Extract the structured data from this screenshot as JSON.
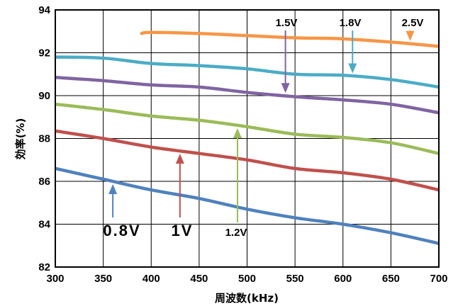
{
  "chart_data": {
    "type": "line",
    "title": "",
    "xlabel": "周波数(kHz)",
    "ylabel": "効率(%)",
    "xlim": [
      300,
      700
    ],
    "ylim": [
      82,
      94
    ],
    "xticks": [
      "300",
      "350",
      "400",
      "450",
      "500",
      "550",
      "600",
      "650",
      "700"
    ],
    "yticks": [
      "82",
      "84",
      "86",
      "88",
      "90",
      "92",
      "94"
    ],
    "grid": true,
    "legend": "none",
    "series": [
      {
        "name": "0.8V",
        "color": "#4F81BD",
        "x": [
          300,
          350,
          400,
          450,
          500,
          550,
          600,
          650,
          700
        ],
        "y": [
          86.6,
          86.1,
          85.6,
          85.2,
          84.7,
          84.3,
          84.0,
          83.6,
          83.1
        ]
      },
      {
        "name": "1V",
        "color": "#C0504D",
        "x": [
          300,
          350,
          400,
          450,
          500,
          550,
          600,
          650,
          700
        ],
        "y": [
          88.35,
          88.0,
          87.6,
          87.3,
          87.0,
          86.6,
          86.4,
          86.1,
          85.6
        ]
      },
      {
        "name": "1.2V",
        "color": "#9BBB59",
        "x": [
          300,
          350,
          400,
          450,
          500,
          550,
          600,
          650,
          700
        ],
        "y": [
          89.6,
          89.35,
          89.05,
          88.85,
          88.55,
          88.2,
          88.05,
          87.8,
          87.3
        ]
      },
      {
        "name": "1.5V",
        "color": "#8064A2",
        "x": [
          300,
          350,
          400,
          450,
          500,
          550,
          600,
          650,
          700
        ],
        "y": [
          90.85,
          90.7,
          90.5,
          90.4,
          90.15,
          89.95,
          89.8,
          89.6,
          89.2
        ]
      },
      {
        "name": "1.8V",
        "color": "#4BACC6",
        "x": [
          300,
          350,
          400,
          450,
          500,
          550,
          600,
          650,
          700
        ],
        "y": [
          91.8,
          91.75,
          91.5,
          91.4,
          91.25,
          91.0,
          90.95,
          90.75,
          90.4
        ]
      },
      {
        "name": "2.5V",
        "color": "#F79646",
        "x": [
          390,
          400,
          450,
          500,
          550,
          600,
          650,
          700
        ],
        "y": [
          92.9,
          92.95,
          92.9,
          92.8,
          92.7,
          92.65,
          92.5,
          92.3
        ]
      }
    ],
    "annotations": [
      {
        "label": "0.8V",
        "series": "0.8V",
        "x": 360
      },
      {
        "label": "1V",
        "series": "1V",
        "x": 430
      },
      {
        "label": "1.2V",
        "series": "1.2V",
        "x": 490
      },
      {
        "label": "1.5V",
        "series": "1.5V",
        "x": 540
      },
      {
        "label": "1.8V",
        "series": "1.8V",
        "x": 610
      },
      {
        "label": "2.5V",
        "series": "2.5V",
        "x": 670
      }
    ]
  }
}
